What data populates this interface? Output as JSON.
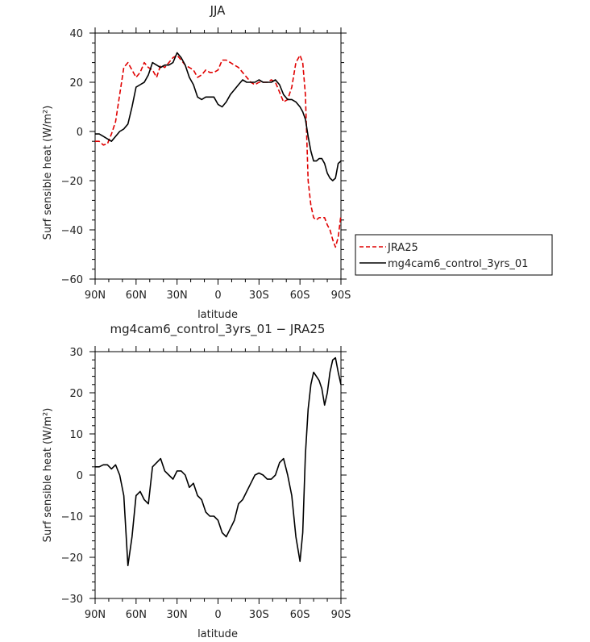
{
  "chart_data": [
    {
      "type": "line",
      "title": "JJA",
      "xlabel": "latitude",
      "ylabel": "Surf sensible heat (W/m²)",
      "xlim": [
        -90,
        90
      ],
      "ylim": [
        -60,
        40
      ],
      "x_reversed": true,
      "x_tick_labels": [
        "90N",
        "60N",
        "30N",
        "0",
        "30S",
        "60S",
        "90S"
      ],
      "x_tick_values": [
        90,
        60,
        30,
        0,
        -30,
        -60,
        -90
      ],
      "y_tick_values": [
        -60,
        -40,
        -20,
        0,
        20,
        40
      ],
      "legend": {
        "placement": "right",
        "entries": [
          "JRA25",
          "mg4cam6_control_3yrs_01"
        ]
      },
      "series": [
        {
          "name": "JRA25",
          "color": "#e00000",
          "dash": "dashed",
          "x": [
            90,
            87,
            84,
            81,
            78,
            75,
            72,
            69,
            66,
            63,
            60,
            57,
            54,
            51,
            48,
            45,
            42,
            39,
            36,
            33,
            30,
            27,
            24,
            21,
            18,
            15,
            12,
            9,
            6,
            3,
            0,
            -3,
            -6,
            -9,
            -12,
            -15,
            -18,
            -21,
            -24,
            -27,
            -30,
            -33,
            -36,
            -39,
            -42,
            -45,
            -48,
            -51,
            -54,
            -57,
            -60,
            -62,
            -64,
            -66,
            -68,
            -70,
            -72,
            -74,
            -76,
            -78,
            -80,
            -82,
            -84,
            -86,
            -88,
            -90
          ],
          "y": [
            -4,
            -4,
            -5.5,
            -5,
            -1,
            4,
            15,
            26,
            28,
            25,
            22,
            24,
            28,
            26,
            25,
            22,
            27,
            26,
            28,
            30,
            31,
            29,
            27,
            26,
            25,
            22,
            23,
            25,
            24,
            24,
            25,
            29,
            29,
            28,
            27,
            26,
            24,
            22,
            20,
            19,
            20,
            20,
            20,
            21,
            20,
            16,
            12,
            13,
            18,
            28,
            31,
            28,
            15,
            -20,
            -30,
            -35,
            -36,
            -35,
            -35,
            -35,
            -38,
            -40,
            -44,
            -47,
            -43,
            -34
          ]
        },
        {
          "name": "mg4cam6_control_3yrs_01",
          "color": "#000000",
          "dash": "solid",
          "x": [
            90,
            87,
            84,
            81,
            78,
            75,
            72,
            69,
            66,
            63,
            60,
            57,
            54,
            51,
            48,
            45,
            42,
            39,
            36,
            33,
            30,
            27,
            24,
            21,
            18,
            15,
            12,
            9,
            6,
            3,
            0,
            -3,
            -6,
            -9,
            -12,
            -15,
            -18,
            -21,
            -24,
            -27,
            -30,
            -33,
            -36,
            -39,
            -42,
            -45,
            -48,
            -51,
            -54,
            -57,
            -60,
            -62,
            -64,
            -66,
            -68,
            -70,
            -72,
            -74,
            -76,
            -78,
            -80,
            -82,
            -84,
            -86,
            -88,
            -90
          ],
          "y": [
            -1,
            -1,
            -2,
            -3,
            -4,
            -2,
            0,
            1,
            3,
            10,
            18,
            19,
            20,
            23,
            28,
            27,
            26,
            27,
            27,
            28,
            32,
            30,
            27,
            22,
            19,
            14,
            13,
            14,
            14,
            14,
            11,
            10,
            12,
            15,
            17,
            19,
            21,
            20,
            20,
            20,
            21,
            20,
            20,
            20,
            21,
            19,
            15,
            13,
            13,
            12,
            10,
            8,
            5,
            -2,
            -8,
            -12,
            -12,
            -11,
            -11,
            -13,
            -17,
            -19,
            -20,
            -19,
            -13,
            -12
          ]
        }
      ]
    },
    {
      "type": "line",
      "title": "mg4cam6_control_3yrs_01 − JRA25",
      "xlabel": "latitude",
      "ylabel": "Surf sensible heat (W/m²)",
      "xlim": [
        -90,
        90
      ],
      "ylim": [
        -30,
        30
      ],
      "x_reversed": true,
      "x_tick_labels": [
        "90N",
        "60N",
        "30N",
        "0",
        "30S",
        "60S",
        "90S"
      ],
      "x_tick_values": [
        90,
        60,
        30,
        0,
        -30,
        -60,
        -90
      ],
      "y_tick_values": [
        -30,
        -20,
        -10,
        0,
        10,
        20,
        30
      ],
      "series": [
        {
          "color": "#000000",
          "dash": "solid",
          "x": [
            90,
            87,
            84,
            81,
            78,
            75,
            72,
            69,
            66,
            63,
            60,
            57,
            54,
            51,
            48,
            45,
            42,
            39,
            36,
            33,
            30,
            27,
            24,
            21,
            18,
            15,
            12,
            9,
            6,
            3,
            0,
            -3,
            -6,
            -9,
            -12,
            -15,
            -18,
            -21,
            -24,
            -27,
            -30,
            -33,
            -36,
            -39,
            -42,
            -45,
            -48,
            -51,
            -54,
            -57,
            -60,
            -62,
            -64,
            -66,
            -68,
            -70,
            -72,
            -74,
            -76,
            -78,
            -80,
            -82,
            -84,
            -86,
            -88,
            -90
          ],
          "y": [
            2,
            2,
            2.5,
            2.5,
            1.5,
            2.5,
            0,
            -5,
            -22,
            -15,
            -5,
            -4,
            -6,
            -7,
            2,
            3,
            4,
            1,
            0,
            -1,
            1,
            1,
            0,
            -3,
            -2,
            -5,
            -6,
            -9,
            -10,
            -10,
            -11,
            -14,
            -15,
            -13,
            -11,
            -7,
            -6,
            -4,
            -2,
            0,
            0.5,
            0,
            -1,
            -1,
            0,
            3,
            4,
            0,
            -5,
            -15,
            -21,
            -14,
            5,
            16,
            22,
            25,
            24,
            23,
            21,
            17,
            20,
            25,
            28,
            28.5,
            25,
            22
          ]
        }
      ]
    }
  ]
}
